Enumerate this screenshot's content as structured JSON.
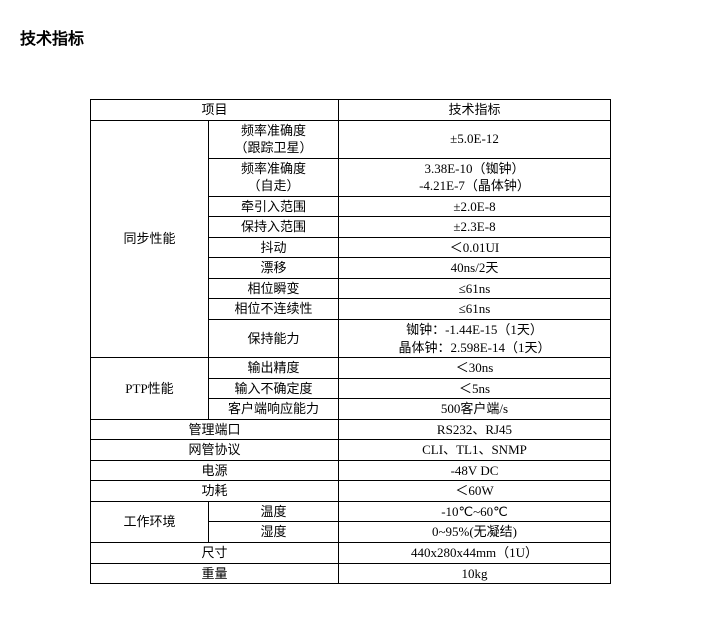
{
  "title": "技术指标",
  "header": {
    "project": "项目",
    "spec": "技术指标"
  },
  "sync": {
    "group": "同步性能",
    "rows": [
      {
        "label": "频率准确度\n（跟踪卫星）",
        "value": "±5.0E-12"
      },
      {
        "label": "频率准确度\n（自走）",
        "value": "3.38E-10（铷钟）\n-4.21E-7（晶体钟）"
      },
      {
        "label": "牵引入范围",
        "value": "±2.0E-8"
      },
      {
        "label": "保持入范围",
        "value": "±2.3E-8"
      },
      {
        "label": "抖动",
        "value": "＜0.01UI"
      },
      {
        "label": "漂移",
        "value": "40ns/2天"
      },
      {
        "label": "相位瞬变",
        "value": "≤61ns"
      },
      {
        "label": "相位不连续性",
        "value": "≤61ns"
      },
      {
        "label": "保持能力",
        "value": "铷钟：-1.44E-15（1天）\n晶体钟：2.598E-14（1天）"
      }
    ]
  },
  "ptp": {
    "group": "PTP性能",
    "rows": [
      {
        "label": "输出精度",
        "value": "＜30ns"
      },
      {
        "label": "输入不确定度",
        "value": "＜5ns"
      },
      {
        "label": "客户端响应能力",
        "value": "500客户端/s"
      }
    ]
  },
  "mgmt_port": {
    "label": "管理端口",
    "value": "RS232、RJ45"
  },
  "nm_proto": {
    "label": "网管协议",
    "value": "CLI、TL1、SNMP"
  },
  "power": {
    "label": "电源",
    "value": "-48V DC"
  },
  "consume": {
    "label": "功耗",
    "value": "＜60W"
  },
  "env": {
    "group": "工作环境",
    "temp": {
      "label": "温度",
      "value": "-10℃~60℃"
    },
    "humid": {
      "label": "湿度",
      "value": "0~95%(无凝结)"
    }
  },
  "size": {
    "label": "尺寸",
    "value": "440x280x44mm（1U）"
  },
  "weight": {
    "label": "重量",
    "value": "10kg"
  }
}
